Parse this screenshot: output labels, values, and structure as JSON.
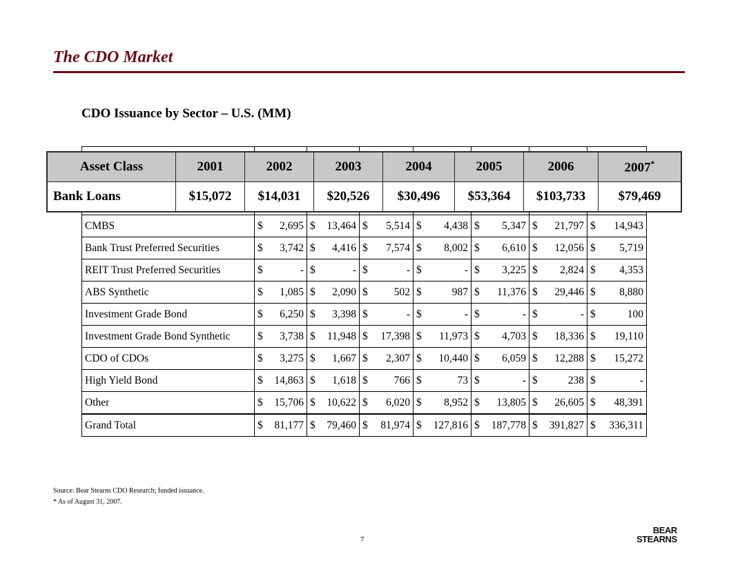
{
  "title": "The CDO Market",
  "subtitle": "CDO Issuance by Sector – U.S. (MM)",
  "overlay": {
    "headers": [
      "Asset Class",
      "2001",
      "2002",
      "2003",
      "2004",
      "2005",
      "2006",
      "2007"
    ],
    "header_sup": "*",
    "row": [
      "Bank Loans",
      "$15,072",
      "$14,031",
      "$20,526",
      "$30,496",
      "$53,364",
      "$103,733",
      "$79,469"
    ]
  },
  "table": {
    "rows": [
      {
        "label": "CMBS",
        "cells": [
          [
            "$",
            "2,695"
          ],
          [
            "$",
            "13,464"
          ],
          [
            "$",
            "5,514"
          ],
          [
            "$",
            "4,438"
          ],
          [
            "$",
            "5,347"
          ],
          [
            "$",
            "21,797"
          ],
          [
            "$",
            "14,943"
          ]
        ]
      },
      {
        "label": "Bank Trust Preferred Securities",
        "cells": [
          [
            "$",
            "3,742"
          ],
          [
            "$",
            "4,416"
          ],
          [
            "$",
            "7,574"
          ],
          [
            "$",
            "8,002"
          ],
          [
            "$",
            "6,610"
          ],
          [
            "$",
            "12,056"
          ],
          [
            "$",
            "5,719"
          ]
        ]
      },
      {
        "label": "REIT Trust Preferred Securities",
        "cells": [
          [
            "$",
            "-"
          ],
          [
            "$",
            "-"
          ],
          [
            "$",
            "-"
          ],
          [
            "$",
            "-"
          ],
          [
            "$",
            "3,225"
          ],
          [
            "$",
            "2,824"
          ],
          [
            "$",
            "4,353"
          ]
        ]
      },
      {
        "label": "ABS Synthetic",
        "cells": [
          [
            "$",
            "1,085"
          ],
          [
            "$",
            "2,090"
          ],
          [
            "$",
            "502"
          ],
          [
            "$",
            "987"
          ],
          [
            "$",
            "11,376"
          ],
          [
            "$",
            "29,446"
          ],
          [
            "$",
            "8,880"
          ]
        ]
      },
      {
        "label": "Investment Grade Bond",
        "cells": [
          [
            "$",
            "6,250"
          ],
          [
            "$",
            "3,398"
          ],
          [
            "$",
            "-"
          ],
          [
            "$",
            "-"
          ],
          [
            "$",
            "-"
          ],
          [
            "$",
            "-"
          ],
          [
            "$",
            "100"
          ]
        ]
      },
      {
        "label": "Investment Grade Bond Synthetic",
        "cells": [
          [
            "$",
            "3,738"
          ],
          [
            "$",
            "11,948"
          ],
          [
            "$",
            "17,398"
          ],
          [
            "$",
            "11,973"
          ],
          [
            "$",
            "4,703"
          ],
          [
            "$",
            "18,336"
          ],
          [
            "$",
            "19,110"
          ]
        ]
      },
      {
        "label": "CDO of CDOs",
        "cells": [
          [
            "$",
            "3,275"
          ],
          [
            "$",
            "1,667"
          ],
          [
            "$",
            "2,307"
          ],
          [
            "$",
            "10,440"
          ],
          [
            "$",
            "6,059"
          ],
          [
            "$",
            "12,288"
          ],
          [
            "$",
            "15,272"
          ]
        ]
      },
      {
        "label": "High Yield Bond",
        "cells": [
          [
            "$",
            "14,863"
          ],
          [
            "$",
            "1,618"
          ],
          [
            "$",
            "766"
          ],
          [
            "$",
            "73"
          ],
          [
            "$",
            "-"
          ],
          [
            "$",
            "238"
          ],
          [
            "$",
            "-"
          ]
        ]
      },
      {
        "label": "Other",
        "cells": [
          [
            "$",
            "15,706"
          ],
          [
            "$",
            "10,622"
          ],
          [
            "$",
            "6,020"
          ],
          [
            "$",
            "8,952"
          ],
          [
            "$",
            "13,805"
          ],
          [
            "$",
            "26,605"
          ],
          [
            "$",
            "48,391"
          ]
        ]
      }
    ],
    "total": {
      "label": "Grand Total",
      "cells": [
        [
          "$",
          "81,177"
        ],
        [
          "$",
          "79,460"
        ],
        [
          "$",
          "81,974"
        ],
        [
          "$",
          "127,816"
        ],
        [
          "$",
          "187,778"
        ],
        [
          "$",
          "391,827"
        ],
        [
          "$",
          "336,311"
        ]
      ]
    }
  },
  "footnotes": [
    "Source: Bear Stearns CDO Research; funded issuance.",
    "* As of August 31, 2007."
  ],
  "page_number": "7",
  "logo": [
    "BEAR",
    "STEARNS"
  ],
  "colors": {
    "title": "#6b0d14",
    "header_bg": "#c8c8c8"
  }
}
